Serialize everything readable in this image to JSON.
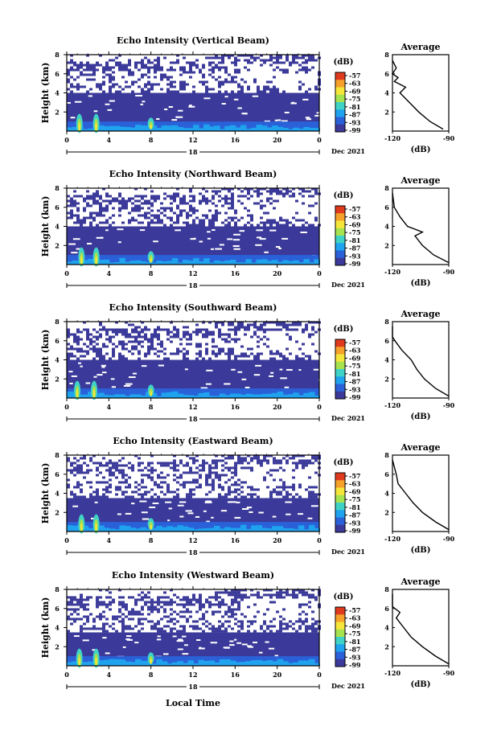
{
  "xaxis": {
    "ticks": [
      "0",
      "4",
      "8",
      "12",
      "16",
      "20",
      "0"
    ],
    "tick_values": [
      0,
      4,
      8,
      12,
      16,
      20,
      24
    ],
    "date_mark": "18",
    "date_label": "Dec 2021",
    "xlabel": "Local Time"
  },
  "yaxis": {
    "label": "Height (km)",
    "ticks": [
      "2",
      "4",
      "6",
      "8"
    ],
    "tick_values": [
      2,
      4,
      6,
      8
    ]
  },
  "colorbar": {
    "unit": "(dB)",
    "labels": [
      "-57",
      "-63",
      "-69",
      "-75",
      "-81",
      "-87",
      "-93",
      "-99"
    ],
    "colors": [
      "#e03a1e",
      "#f5a12a",
      "#f7e63a",
      "#a7e24f",
      "#3fd3c7",
      "#1fa3ee",
      "#2a61d8",
      "#3b3a9a"
    ]
  },
  "average": {
    "title": "Average",
    "xlabel": "(dB)",
    "xticks": [
      "-120",
      "-90"
    ],
    "yticks": [
      "2",
      "4",
      "6",
      "8"
    ]
  },
  "colors": {
    "background_fill": "#3b3a9a",
    "strong_echo": "#f7e63a",
    "line": "#000000"
  },
  "panels": [
    {
      "title": "Echo Intensity (Vertical Beam)",
      "top_km": 4.0,
      "spikes": [
        1.2,
        2.8,
        8.0
      ],
      "profile": [
        [
          -93,
          0.2
        ],
        [
          -100,
          1
        ],
        [
          -106,
          2
        ],
        [
          -111,
          3
        ],
        [
          -116,
          4
        ],
        [
          -113,
          4.6
        ],
        [
          -119,
          5.2
        ],
        [
          -117,
          5.6
        ],
        [
          -120,
          6
        ],
        [
          -118,
          6.6
        ],
        [
          -121,
          7.4
        ]
      ]
    },
    {
      "title": "Echo Intensity (Northward Beam)",
      "top_km": 4.0,
      "spikes": [
        1.4,
        2.8,
        8.0
      ],
      "profile": [
        [
          -90,
          0.2
        ],
        [
          -98,
          1
        ],
        [
          -104,
          2
        ],
        [
          -108,
          3
        ],
        [
          -104,
          3.4
        ],
        [
          -112,
          4
        ],
        [
          -116,
          5
        ],
        [
          -119,
          6
        ],
        [
          -121,
          7.5
        ]
      ]
    },
    {
      "title": "Echo Intensity (Southward Beam)",
      "top_km": 4.0,
      "spikes": [
        1.0,
        2.6,
        8.0
      ],
      "profile": [
        [
          -90,
          0.2
        ],
        [
          -97,
          1
        ],
        [
          -103,
          2
        ],
        [
          -107,
          3
        ],
        [
          -110,
          4
        ],
        [
          -115,
          5
        ],
        [
          -118,
          5.8
        ],
        [
          -120,
          6.4
        ],
        [
          -121,
          7.5
        ]
      ]
    },
    {
      "title": "Echo Intensity (Eastward Beam)",
      "top_km": 3.5,
      "spikes": [
        1.4,
        2.8,
        8.0
      ],
      "profile": [
        [
          -90,
          0.2
        ],
        [
          -97,
          1
        ],
        [
          -104,
          2
        ],
        [
          -109,
          3
        ],
        [
          -113,
          4
        ],
        [
          -117,
          5
        ],
        [
          -118,
          6
        ],
        [
          -121,
          7.5
        ]
      ]
    },
    {
      "title": "Echo Intensity (Westward Beam)",
      "top_km": 3.5,
      "spikes": [
        1.2,
        2.8,
        8.0
      ],
      "profile": [
        [
          -90,
          0.2
        ],
        [
          -97,
          1
        ],
        [
          -104,
          2
        ],
        [
          -110,
          3
        ],
        [
          -114,
          4
        ],
        [
          -118,
          5
        ],
        [
          -116,
          5.6
        ],
        [
          -121,
          6.2
        ],
        [
          -122,
          7.5
        ]
      ]
    }
  ]
}
